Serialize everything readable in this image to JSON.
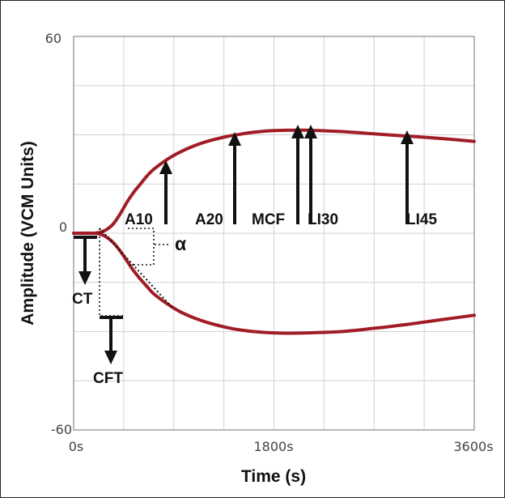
{
  "chart_data": {
    "type": "line",
    "title": "",
    "xlabel": "Time (s)",
    "ylabel": "Amplitude (VCM Units)",
    "xlim": [
      0,
      3600
    ],
    "ylim": [
      -60,
      60
    ],
    "x_tick_labels": [
      "0s",
      "1800s",
      "3600s"
    ],
    "y_tick_labels": [
      "60",
      "0",
      "-60"
    ],
    "grid": true,
    "line_color": "#a11d25",
    "upper_trace": {
      "x": [
        0,
        180,
        240,
        300,
        360,
        420,
        480,
        540,
        600,
        660,
        720,
        840,
        960,
        1080,
        1200,
        1380,
        1500,
        1620,
        1800,
        2100,
        2400,
        2700,
        3000,
        3300,
        3600
      ],
      "y": [
        0,
        0,
        0.3,
        1.2,
        3,
        6,
        9.5,
        12.5,
        15,
        17.5,
        19.5,
        22.5,
        24.8,
        26.6,
        28,
        29.5,
        30.2,
        30.8,
        31.3,
        31.4,
        31,
        30.3,
        29.6,
        28.9,
        28
      ]
    },
    "lower_trace": {
      "x": [
        0,
        180,
        240,
        300,
        360,
        420,
        480,
        540,
        600,
        660,
        720,
        840,
        960,
        1080,
        1200,
        1380,
        1500,
        1620,
        1800,
        1950,
        2100,
        2400,
        2700,
        3000,
        3300,
        3600
      ],
      "y": [
        0,
        0,
        -0.3,
        -1.3,
        -3,
        -5.5,
        -8.5,
        -11.5,
        -14,
        -16.3,
        -18.5,
        -21.5,
        -24,
        -25.8,
        -27.2,
        -28.8,
        -29.5,
        -30,
        -30.4,
        -30.5,
        -30.4,
        -30,
        -29,
        -27.8,
        -26.4,
        -25
      ]
    },
    "annotations": {
      "A10": "A10",
      "A20": "A20",
      "MCF": "MCF",
      "LI30": "LI30",
      "LI45": "LI45",
      "CT": "CT",
      "CFT": "CFT",
      "alpha": "α"
    }
  }
}
